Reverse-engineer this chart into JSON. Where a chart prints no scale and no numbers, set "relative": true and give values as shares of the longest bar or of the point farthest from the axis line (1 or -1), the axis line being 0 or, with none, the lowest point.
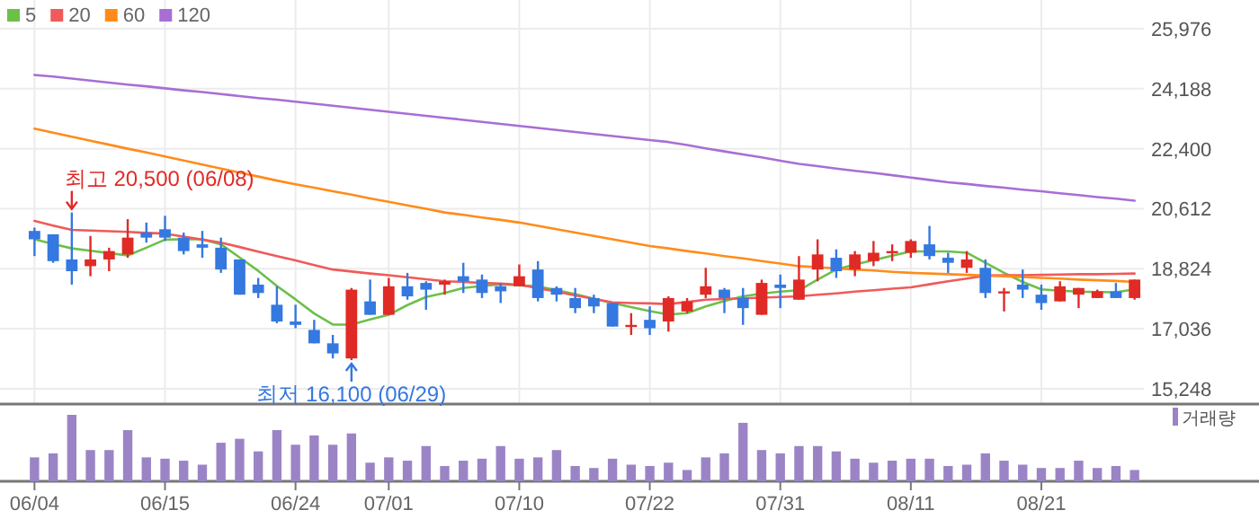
{
  "chart_data": [
    {
      "type": "candlestick",
      "categories": [
        null,
        null,
        null,
        null,
        null,
        null,
        null,
        null,
        null,
        null,
        null,
        null,
        null,
        null,
        null,
        null,
        null,
        null,
        null,
        null,
        null,
        null,
        null,
        null,
        null,
        null,
        null,
        null,
        null,
        null,
        null,
        null,
        null,
        null,
        null,
        null,
        null,
        null,
        null,
        null,
        null,
        null,
        null,
        null,
        null,
        null,
        null,
        null,
        null,
        null,
        null,
        null,
        null,
        null,
        null,
        null,
        null,
        null,
        null,
        null
      ],
      "ohlc": [
        [
          19950,
          20050,
          19200,
          19700
        ],
        [
          19850,
          19850,
          19000,
          19050
        ],
        [
          19100,
          20500,
          18350,
          18750
        ],
        [
          18900,
          19800,
          18600,
          19100
        ],
        [
          19100,
          19450,
          18750,
          19350
        ],
        [
          19250,
          20300,
          19150,
          19750
        ],
        [
          19900,
          20200,
          19600,
          19750
        ],
        [
          20000,
          20400,
          19650,
          19750
        ],
        [
          19750,
          19900,
          19250,
          19350
        ],
        [
          19550,
          19950,
          19150,
          19450
        ],
        [
          19450,
          19750,
          18700,
          18800
        ],
        [
          19100,
          19100,
          18050,
          18050
        ],
        [
          18350,
          18550,
          17950,
          18100
        ],
        [
          17750,
          18300,
          17200,
          17250
        ],
        [
          17250,
          17750,
          17050,
          17150
        ],
        [
          17000,
          17300,
          16600,
          16600
        ],
        [
          16600,
          16850,
          16150,
          16300
        ],
        [
          16150,
          18250,
          16100,
          18200
        ],
        [
          17850,
          18500,
          17450,
          17450
        ],
        [
          17450,
          18550,
          17450,
          18300
        ],
        [
          18300,
          18700,
          17900,
          18000
        ],
        [
          18400,
          18450,
          17600,
          18200
        ],
        [
          18350,
          18500,
          18050,
          18450
        ],
        [
          18600,
          19000,
          18100,
          18450
        ],
        [
          18500,
          18650,
          17950,
          18100
        ],
        [
          18300,
          18400,
          17800,
          18150
        ],
        [
          18300,
          18950,
          18300,
          18600
        ],
        [
          18800,
          19050,
          17850,
          17950
        ],
        [
          18250,
          18300,
          17850,
          18050
        ],
        [
          17950,
          18250,
          17500,
          17650
        ],
        [
          17950,
          18050,
          17500,
          17700
        ],
        [
          17800,
          17800,
          17100,
          17100
        ],
        [
          17100,
          17500,
          16850,
          17150
        ],
        [
          17300,
          17700,
          16850,
          17050
        ],
        [
          17250,
          18000,
          16950,
          17950
        ],
        [
          17550,
          17950,
          17500,
          17850
        ],
        [
          18050,
          18850,
          17950,
          18300
        ],
        [
          18200,
          18250,
          17500,
          17950
        ],
        [
          17950,
          18250,
          17150,
          17650
        ],
        [
          17450,
          18500,
          17450,
          18400
        ],
        [
          18350,
          18650,
          17650,
          18250
        ],
        [
          17900,
          19200,
          17900,
          18500
        ],
        [
          18800,
          19700,
          18450,
          19250
        ],
        [
          19150,
          19400,
          18550,
          18750
        ],
        [
          18800,
          19350,
          18600,
          19250
        ],
        [
          19050,
          19650,
          18900,
          19300
        ],
        [
          19300,
          19550,
          19050,
          19350
        ],
        [
          19300,
          19700,
          19150,
          19650
        ],
        [
          19550,
          20100,
          19100,
          19200
        ],
        [
          19150,
          19300,
          18700,
          19000
        ],
        [
          18850,
          19350,
          18700,
          19100
        ],
        [
          18850,
          19100,
          17950,
          18100
        ],
        [
          18100,
          18250,
          17550,
          18150
        ],
        [
          18350,
          18800,
          17950,
          18200
        ],
        [
          18050,
          18350,
          17600,
          17800
        ],
        [
          17850,
          18450,
          17850,
          18300
        ],
        [
          18050,
          18250,
          17650,
          18250
        ],
        [
          17950,
          18200,
          17950,
          18150
        ],
        [
          18150,
          18400,
          17950,
          17950
        ],
        [
          17950,
          18500,
          17900,
          18500
        ]
      ],
      "series": [
        {
          "name": "5",
          "type": "line",
          "color": "#6cc04a",
          "values": [
            19700,
            19560,
            19430,
            19360,
            19290,
            19220,
            19450,
            19690,
            19700,
            19700,
            19550,
            19160,
            18760,
            18310,
            17910,
            17490,
            17160,
            17160,
            17310,
            17450,
            17740,
            17980,
            18100,
            18250,
            18310,
            18360,
            18330,
            18300,
            18180,
            18070,
            17930,
            17800,
            17680,
            17560,
            17460,
            17500,
            17700,
            17860,
            18000,
            18080,
            18140,
            18180,
            18500,
            18800,
            18950,
            19080,
            19210,
            19340,
            19340,
            19340,
            19300,
            19000,
            18700,
            18430,
            18210,
            18170,
            18140,
            18130,
            18120,
            18210
          ]
        },
        {
          "name": "20",
          "type": "line",
          "color": "#f05a5a",
          "values": [
            20250,
            20110,
            19980,
            19960,
            19940,
            19920,
            19890,
            19870,
            19780,
            19690,
            19600,
            19470,
            19330,
            19200,
            19070,
            18930,
            18800,
            18740,
            18680,
            18630,
            18570,
            18510,
            18450,
            18430,
            18400,
            18380,
            18350,
            18240,
            18140,
            18030,
            17930,
            17820,
            17800,
            17790,
            17770,
            17830,
            17900,
            17920,
            17940,
            17960,
            17980,
            18000,
            18050,
            18090,
            18140,
            18180,
            18230,
            18270,
            18360,
            18450,
            18530,
            18620,
            18630,
            18630,
            18640,
            18650,
            18660,
            18660,
            18670,
            18680
          ]
        },
        {
          "name": "60",
          "type": "line",
          "color": "#ff8c1a",
          "values": [
            23000,
            22880,
            22760,
            22640,
            22520,
            22400,
            22290,
            22170,
            22050,
            21930,
            21810,
            21690,
            21570,
            21450,
            21340,
            21240,
            21130,
            21030,
            20920,
            20820,
            20710,
            20610,
            20500,
            20430,
            20350,
            20280,
            20200,
            20100,
            20000,
            19900,
            19800,
            19700,
            19600,
            19500,
            19430,
            19350,
            19280,
            19200,
            19130,
            19050,
            18980,
            18900,
            18870,
            18830,
            18800,
            18770,
            18730,
            18700,
            18680,
            18660,
            18640,
            18620,
            18600,
            18580,
            18550,
            18530,
            18500,
            18480,
            18460,
            18430
          ]
        },
        {
          "name": "120",
          "type": "line",
          "color": "#a86ed4",
          "values": [
            24600,
            24550,
            24490,
            24430,
            24370,
            24310,
            24260,
            24200,
            24140,
            24090,
            24030,
            23970,
            23910,
            23860,
            23800,
            23740,
            23680,
            23620,
            23560,
            23500,
            23440,
            23380,
            23320,
            23260,
            23200,
            23140,
            23080,
            23020,
            22960,
            22900,
            22840,
            22780,
            22720,
            22660,
            22600,
            22510,
            22410,
            22320,
            22230,
            22140,
            22040,
            21950,
            21880,
            21810,
            21740,
            21680,
            21610,
            21540,
            21470,
            21400,
            21350,
            21290,
            21240,
            21180,
            21130,
            21070,
            21020,
            20960,
            20910,
            20850
          ]
        }
      ],
      "ylim": [
        14790,
        25976
      ],
      "yticks": [
        {
          "value": 15248,
          "label": "15,248"
        },
        {
          "value": 17036,
          "label": "17,036"
        },
        {
          "value": 18824,
          "label": "18,824"
        },
        {
          "value": 20612,
          "label": "20,612"
        },
        {
          "value": 22400,
          "label": "22,400"
        },
        {
          "value": 24188,
          "label": "24,188"
        },
        {
          "value": 25976,
          "label": "25,976"
        }
      ],
      "annotations": [
        {
          "text": "최고 20,500 (06/08)",
          "y": 20500
        },
        {
          "text": "최저 16,100 (06/29)",
          "y": 16100
        }
      ],
      "grid": true,
      "legend": "top left",
      "tick_labels": "y"
    },
    {
      "type": "bar",
      "relative": true,
      "categories": [
        "06/04",
        null,
        null,
        null,
        null,
        null,
        null,
        "06/15",
        null,
        null,
        null,
        null,
        null,
        null,
        "06/24",
        null,
        null,
        null,
        null,
        "07/01",
        null,
        null,
        null,
        null,
        null,
        null,
        "07/10",
        null,
        null,
        null,
        null,
        null,
        null,
        "07/22",
        null,
        null,
        null,
        null,
        null,
        null,
        "07/31",
        null,
        null,
        null,
        null,
        null,
        null,
        "08/11",
        null,
        null,
        null,
        null,
        null,
        null,
        "08/21",
        null,
        null,
        null,
        null,
        null
      ],
      "series": [
        {
          "name": "거래량",
          "color": "#9b84c6",
          "values": [
            0.36,
            0.42,
            1,
            0.47,
            0.47,
            0.77,
            0.36,
            0.34,
            0.31,
            0.25,
            0.58,
            0.64,
            0.45,
            0.77,
            0.55,
            0.69,
            0.55,
            0.72,
            0.28,
            0.36,
            0.31,
            0.53,
            0.23,
            0.31,
            0.34,
            0.53,
            0.34,
            0.36,
            0.47,
            0.23,
            0.2,
            0.34,
            0.25,
            0.23,
            0.28,
            0.17,
            0.36,
            0.42,
            0.88,
            0.47,
            0.42,
            0.53,
            0.53,
            0.45,
            0.34,
            0.28,
            0.31,
            0.34,
            0.34,
            0.23,
            0.25,
            0.42,
            0.31,
            0.25,
            0.2,
            0.2,
            0.31,
            0.2,
            0.23,
            0.17
          ]
        }
      ],
      "legend": "top right",
      "tick_labels": "x"
    }
  ]
}
